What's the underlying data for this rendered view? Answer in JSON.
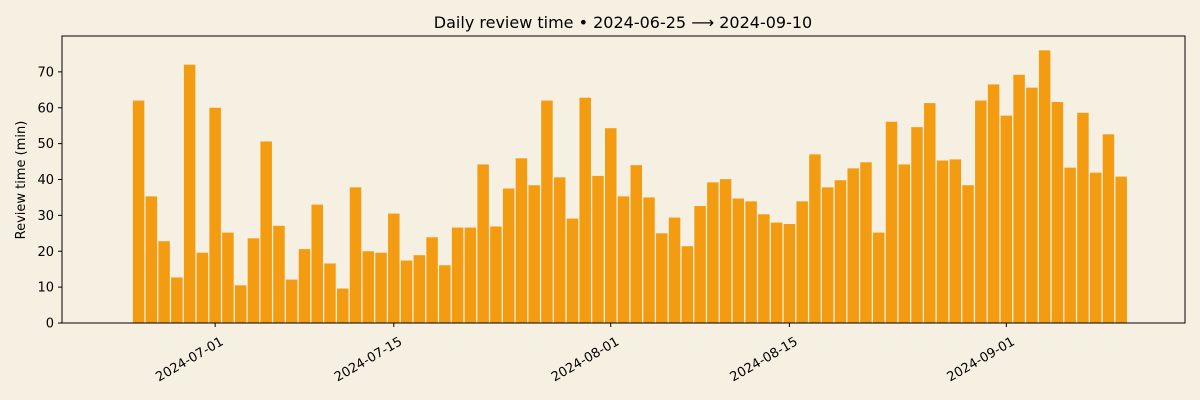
{
  "chart_data": {
    "type": "bar",
    "title": "Daily review time • 2024-06-25 ⟶ 2024-09-10",
    "xlabel": "",
    "ylabel": "Review time (min)",
    "x_start": "2024-06-25",
    "x_end": "2024-09-10",
    "xlim": [
      "2024-06-19",
      "2024-09-15"
    ],
    "ylim": [
      0,
      80
    ],
    "yticks": [
      0,
      10,
      20,
      30,
      40,
      50,
      60,
      70
    ],
    "xticks": [
      "2024-07-01",
      "2024-07-15",
      "2024-08-01",
      "2024-08-15",
      "2024-09-01"
    ],
    "bar_color": "#f39c12",
    "grid": false,
    "legend": "none",
    "series": [
      {
        "values": [
          62,
          35.3,
          22.8,
          12.7,
          72,
          19.6,
          60,
          25.2,
          10.5,
          23.6,
          50.6,
          27.1,
          12.1,
          20.6,
          33,
          16.6,
          9.6,
          37.8,
          20,
          19.6,
          30.5,
          17.4,
          18.9,
          23.9,
          16.1,
          26.6,
          26.6,
          44.2,
          26.9,
          37.5,
          45.9,
          38.4,
          62,
          40.6,
          29.1,
          62.8,
          41,
          54.3,
          35.3,
          44,
          35,
          25,
          29.4,
          21.4,
          32.6,
          39.2,
          40.1,
          34.7,
          33.9,
          30.3,
          28,
          27.6,
          33.9,
          47,
          37.8,
          39.8,
          43.1,
          44.8,
          25.2,
          56.1,
          44.2,
          54.6,
          61.3,
          45.3,
          45.6,
          38.4,
          62,
          66.5,
          57.8,
          69.2,
          65.6,
          76,
          61.6,
          43.3,
          58.6,
          41.9,
          52.6,
          40.8
        ]
      }
    ]
  }
}
